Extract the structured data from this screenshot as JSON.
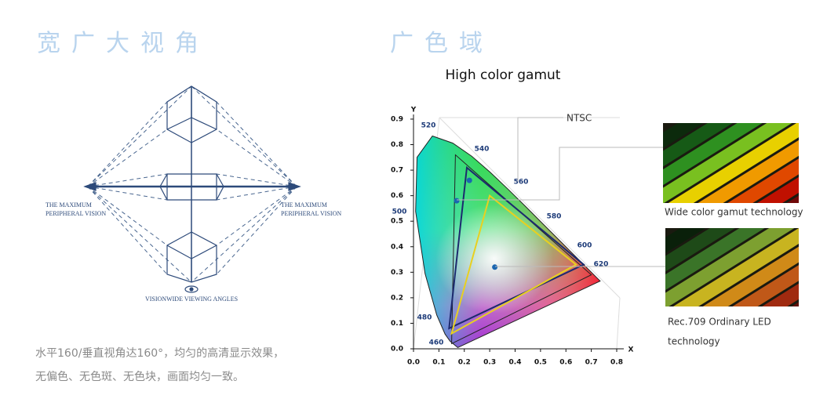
{
  "left": {
    "title": "宽广大视角",
    "diagram": {
      "left_label": [
        "THE MAXIMUM",
        "PERIPHERAL VISION"
      ],
      "right_label": [
        "THE MAXIMUM",
        "PERIPHERAL VISION"
      ],
      "caption": "VISIONWIDE VIEWING ANGLES"
    },
    "description": [
      "水平160/垂直视角达160°，均匀的高清显示效果，",
      "无偏色、无色斑、无色块，画面均匀一致。"
    ]
  },
  "right": {
    "title": "广色域",
    "chart_title": "High color gamut",
    "x_label": "X",
    "y_label": "Y",
    "xticks": [
      "0.0",
      "0.1",
      "0.2",
      "0.3",
      "0.4",
      "0.5",
      "0.6",
      "0.7",
      "0.8"
    ],
    "yticks": [
      "0.0",
      "0.1",
      "0.2",
      "0.3",
      "0.4",
      "0.5",
      "0.6",
      "0.7",
      "0.8",
      "0.9"
    ],
    "wavelengths": [
      "520",
      "540",
      "560",
      "580",
      "600",
      "620",
      "500",
      "480",
      "460"
    ],
    "ntsc_label": "NTSC",
    "images": [
      {
        "caption": [
          "Wide color gamut technology"
        ]
      },
      {
        "caption": [
          "Rec.709 Ordinary LED",
          "technology"
        ]
      }
    ]
  }
}
